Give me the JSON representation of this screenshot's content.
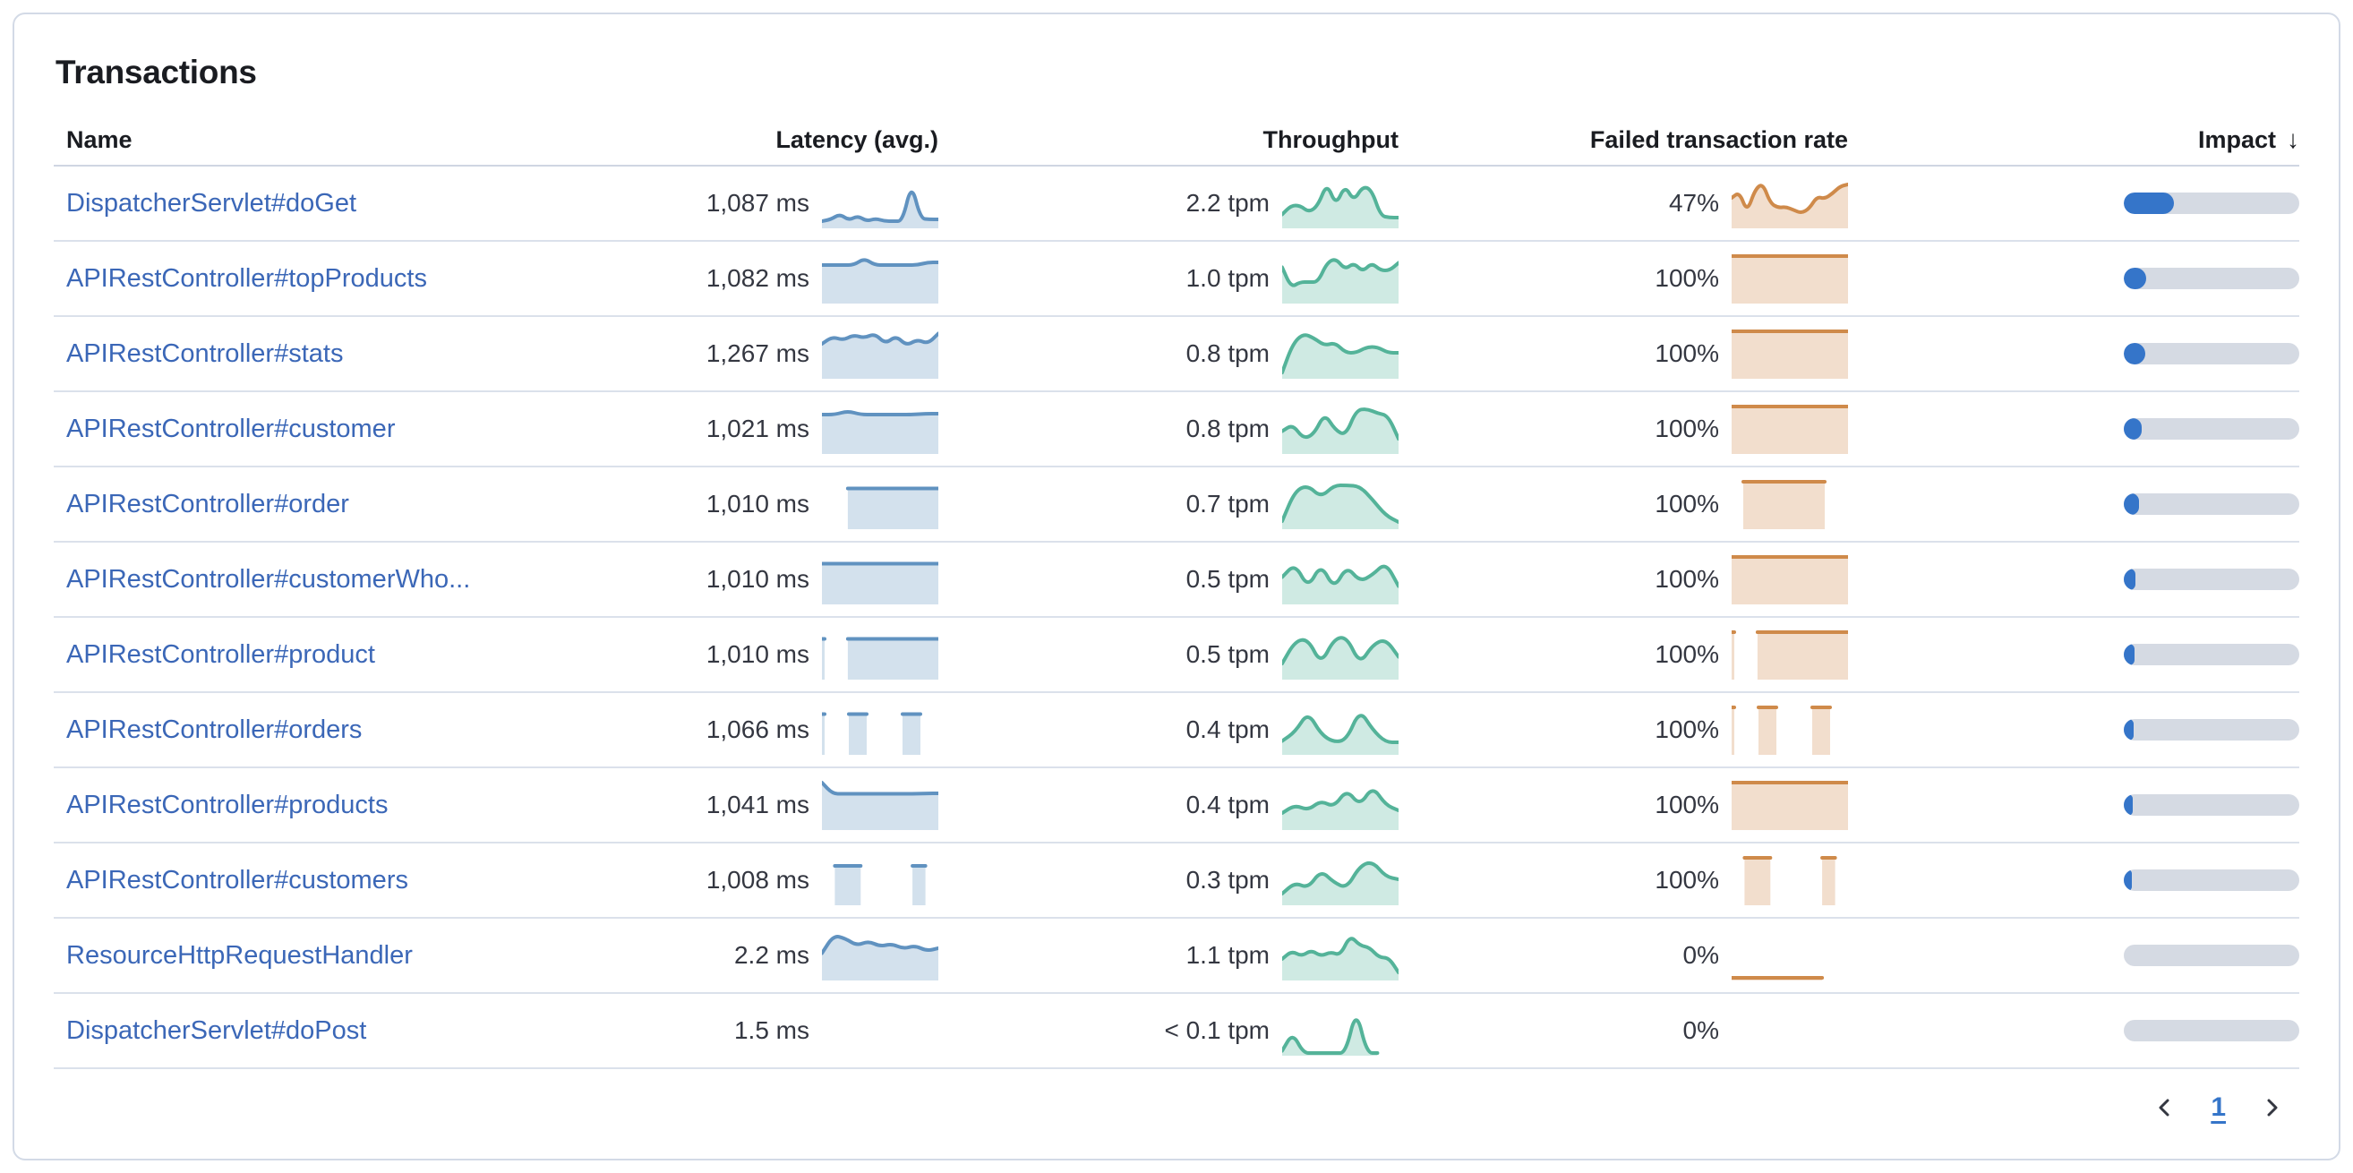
{
  "panel": {
    "title": "Transactions"
  },
  "table": {
    "columns": [
      {
        "label": "Name"
      },
      {
        "label": "Latency (avg.)"
      },
      {
        "label": "Throughput"
      },
      {
        "label": "Failed transaction rate"
      },
      {
        "label": "Impact",
        "sorted": "desc",
        "sort_icon": "↓"
      }
    ],
    "rows": [
      {
        "name": "DispatcherServlet#doGet",
        "latency": "1,087 ms",
        "throughput": "2.2 tpm",
        "failed_rate": "47%",
        "impact_pct": 28.5,
        "latency_series": [
          0.1,
          0.14,
          0.26,
          0.12,
          0.22,
          0.1,
          0.16,
          0.1,
          0.1,
          0.1,
          0.95,
          0.16,
          0.14,
          0.14
        ],
        "throughput_series": [
          0.25,
          0.45,
          0.45,
          0.3,
          0.45,
          0.95,
          0.45,
          0.9,
          0.55,
          0.88,
          0.8,
          0.22,
          0.18,
          0.18
        ],
        "failed_series": [
          0.62,
          0.75,
          0.3,
          0.8,
          0.95,
          0.5,
          0.4,
          0.42,
          0.35,
          0.28,
          0.38,
          0.65,
          0.6,
          0.72,
          0.88,
          0.92
        ]
      },
      {
        "name": "APIRestController#topProducts",
        "latency": "1,082 ms",
        "throughput": "1.0 tpm",
        "failed_rate": "100%",
        "impact_pct": 12.5,
        "latency_series": [
          0.8,
          0.8,
          0.8,
          0.8,
          0.95,
          0.8,
          0.8,
          0.8,
          0.8,
          0.8,
          0.86,
          0.86
        ],
        "throughput_series": [
          0.75,
          0.3,
          0.42,
          0.42,
          0.42,
          0.85,
          0.95,
          0.7,
          0.85,
          0.65,
          0.85,
          0.68,
          0.68,
          0.85
        ],
        "failed_series": [
          1,
          1,
          1,
          1,
          1,
          1,
          1,
          1,
          1,
          1
        ]
      },
      {
        "name": "APIRestController#stats",
        "latency": "1,267 ms",
        "throughput": "0.8 tpm",
        "failed_rate": "100%",
        "impact_pct": 12,
        "latency_series": [
          0.72,
          0.88,
          0.8,
          0.92,
          0.85,
          0.95,
          0.72,
          0.9,
          0.68,
          0.82,
          0.72,
          0.95
        ],
        "throughput_series": [
          0.08,
          0.72,
          0.95,
          0.85,
          0.68,
          0.75,
          0.52,
          0.52,
          0.65,
          0.65,
          0.52,
          0.52
        ],
        "failed_series": [
          1,
          1,
          1,
          1,
          1,
          1,
          1,
          1,
          1,
          1
        ]
      },
      {
        "name": "APIRestController#customer",
        "latency": "1,021 ms",
        "throughput": "0.8 tpm",
        "failed_rate": "100%",
        "impact_pct": 10,
        "latency_series": [
          0.82,
          0.82,
          0.9,
          0.82,
          0.82,
          0.82,
          0.82,
          0.82,
          0.84,
          0.84
        ],
        "throughput_series": [
          0.45,
          0.6,
          0.28,
          0.38,
          0.85,
          0.48,
          0.35,
          0.92,
          0.95,
          0.85,
          0.8,
          0.28
        ],
        "failed_series": [
          1,
          1,
          1,
          1,
          1,
          1,
          1,
          1,
          1,
          1
        ]
      },
      {
        "name": "APIRestController#order",
        "latency": "1,010 ms",
        "throughput": "0.7 tpm",
        "failed_rate": "100%",
        "impact_pct": 8.5,
        "latency_series": [
          null,
          null,
          0.85,
          0.85,
          0.85,
          0.85,
          0.85,
          0.85,
          0.85,
          0.85
        ],
        "throughput_series": [
          0.12,
          0.8,
          0.92,
          0.65,
          0.92,
          0.92,
          0.9,
          0.6,
          0.25,
          0.1
        ],
        "failed_series": [
          null,
          1,
          1,
          1,
          1,
          1,
          1,
          1,
          1,
          null,
          null
        ]
      },
      {
        "name": "APIRestController#customerWho...",
        "latency": "1,010 ms",
        "throughput": "0.5 tpm",
        "failed_rate": "100%",
        "impact_pct": 6.5,
        "latency_series": [
          0.85,
          0.85,
          0.85,
          0.85,
          0.85,
          0.85,
          0.85,
          0.85,
          0.85,
          0.85,
          0.85,
          0.85
        ],
        "throughput_series": [
          0.55,
          0.85,
          0.3,
          0.85,
          0.28,
          0.8,
          0.45,
          0.6,
          0.88,
          0.35
        ],
        "failed_series": [
          1,
          1,
          1,
          1,
          1,
          1,
          1,
          1,
          1,
          1,
          1,
          1
        ]
      },
      {
        "name": "APIRestController#product",
        "latency": "1,010 ms",
        "throughput": "0.5 tpm",
        "failed_rate": "100%",
        "impact_pct": 6,
        "latency_series": [
          0.85,
          null,
          0.85,
          0.85,
          0.85,
          0.85,
          0.85,
          0.85,
          0.85,
          0.85
        ],
        "throughput_series": [
          0.3,
          0.8,
          0.85,
          0.28,
          0.85,
          0.9,
          0.28,
          0.72,
          0.85,
          0.45
        ],
        "failed_series": [
          1,
          null,
          1,
          1,
          1,
          1,
          1,
          1,
          1,
          1
        ]
      },
      {
        "name": "APIRestController#orders",
        "latency": "1,066 ms",
        "throughput": "0.4 tpm",
        "failed_rate": "100%",
        "impact_pct": 5.5,
        "latency_series": [
          0.85,
          null,
          null,
          0.85,
          0.85,
          0.85,
          null,
          null,
          null,
          0.85,
          0.85,
          0.85,
          null,
          null
        ],
        "throughput_series": [
          0.25,
          0.45,
          0.9,
          0.4,
          0.22,
          0.28,
          0.95,
          0.5,
          0.22,
          0.22
        ],
        "failed_series": [
          1,
          null,
          null,
          1,
          1,
          1,
          null,
          null,
          null,
          1,
          1,
          1,
          null,
          null
        ]
      },
      {
        "name": "APIRestController#products",
        "latency": "1,041 ms",
        "throughput": "0.4 tpm",
        "failed_rate": "100%",
        "impact_pct": 5,
        "latency_series": [
          1.0,
          0.75,
          0.75,
          0.75,
          0.75,
          0.75,
          0.75,
          0.75,
          0.75,
          0.75,
          0.76,
          0.76
        ],
        "throughput_series": [
          0.32,
          0.5,
          0.38,
          0.6,
          0.45,
          0.85,
          0.48,
          0.92,
          0.5,
          0.38
        ],
        "failed_series": [
          1,
          1,
          1,
          1,
          1,
          1,
          1,
          1,
          1,
          1,
          1,
          1
        ]
      },
      {
        "name": "APIRestController#customers",
        "latency": "1,008 ms",
        "throughput": "0.3 tpm",
        "failed_rate": "100%",
        "impact_pct": 4.5,
        "latency_series": [
          null,
          0.82,
          0.82,
          0.82,
          null,
          null,
          null,
          0.82,
          0.82,
          null
        ],
        "throughput_series": [
          0.2,
          0.45,
          0.32,
          0.72,
          0.45,
          0.32,
          0.82,
          0.92,
          0.58,
          0.52
        ],
        "failed_series": [
          null,
          1,
          1,
          1,
          null,
          null,
          null,
          1,
          1,
          null
        ]
      },
      {
        "name": "ResourceHttpRequestHandler",
        "latency": "2.2 ms",
        "throughput": "1.1 tpm",
        "failed_rate": "0%",
        "impact_pct": 0,
        "latency_series": [
          0.55,
          0.95,
          0.88,
          0.72,
          0.82,
          0.7,
          0.76,
          0.65,
          0.72,
          0.6,
          0.66
        ],
        "throughput_series": [
          0.42,
          0.6,
          0.48,
          0.62,
          0.48,
          0.58,
          0.5,
          0.95,
          0.72,
          0.68,
          0.45,
          0.45,
          0.12
        ],
        "failed_series": [
          0,
          0,
          0,
          0,
          0,
          0,
          0,
          0,
          null,
          null
        ]
      },
      {
        "name": "DispatcherServlet#doPost",
        "latency": "1.5 ms",
        "throughput": "< 0.1 tpm",
        "failed_rate": "0%",
        "impact_pct": 0,
        "latency_series": [],
        "throughput_series": [
          0.05,
          0.45,
          0,
          0,
          0,
          0,
          0,
          0.98,
          0,
          0,
          null,
          null
        ],
        "failed_series": []
      }
    ]
  },
  "pagination": {
    "page": "1"
  },
  "colors": {
    "latency_line": "#6092C0",
    "throughput_line": "#54B399",
    "failed_line": "#CF8A4A",
    "impact_fill": "#3575c9",
    "impact_track": "#d5dae3",
    "link": "#3b67b7"
  }
}
